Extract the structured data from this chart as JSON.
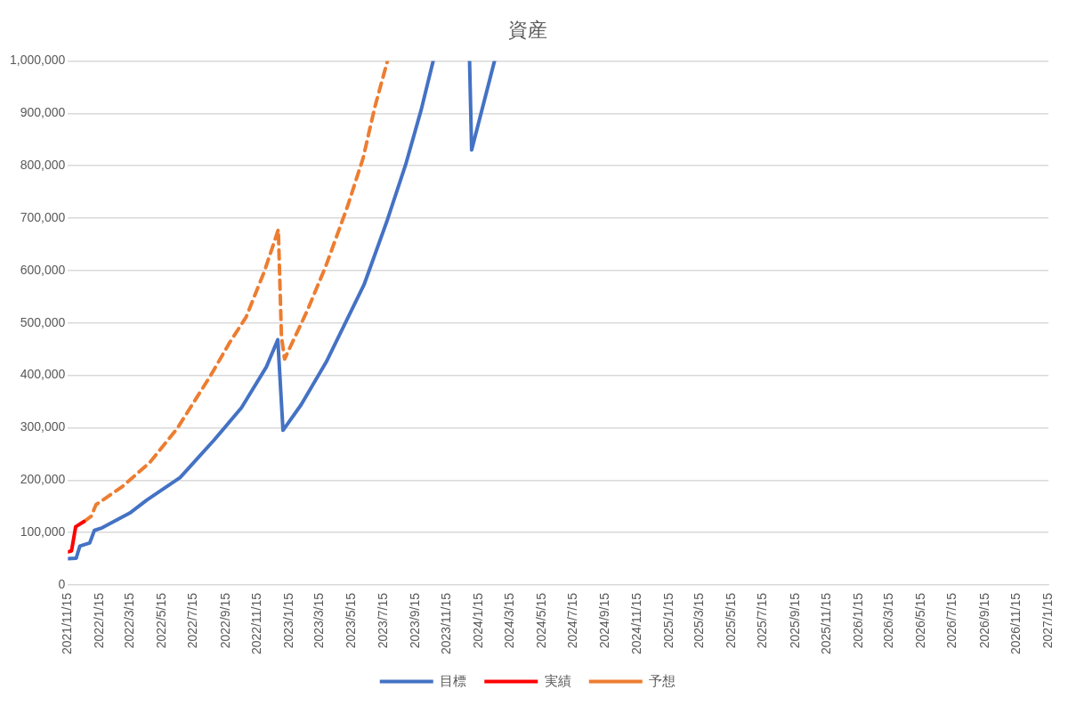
{
  "chart_data": {
    "type": "line",
    "title": "資産",
    "xlim": [
      "2021-11-15",
      "2027-01-15"
    ],
    "xticks": [
      {
        "value": "2021-11-15",
        "label": "2021/11/15"
      },
      {
        "value": "2022-01-15",
        "label": "2022/1/15"
      },
      {
        "value": "2022-03-15",
        "label": "2022/3/15"
      },
      {
        "value": "2022-05-15",
        "label": "2022/5/15"
      },
      {
        "value": "2022-07-15",
        "label": "2022/7/15"
      },
      {
        "value": "2022-09-15",
        "label": "2022/9/15"
      },
      {
        "value": "2022-11-15",
        "label": "2022/11/15"
      },
      {
        "value": "2023-01-15",
        "label": "2023/1/15"
      },
      {
        "value": "2023-03-15",
        "label": "2023/3/15"
      },
      {
        "value": "2023-05-15",
        "label": "2023/5/15"
      },
      {
        "value": "2023-07-15",
        "label": "2023/7/15"
      },
      {
        "value": "2023-09-15",
        "label": "2023/9/15"
      },
      {
        "value": "2023-11-15",
        "label": "2023/11/15"
      },
      {
        "value": "2024-01-15",
        "label": "2024/1/15"
      },
      {
        "value": "2024-03-15",
        "label": "2024/3/15"
      },
      {
        "value": "2024-05-15",
        "label": "2024/5/15"
      },
      {
        "value": "2024-07-15",
        "label": "2024/7/15"
      },
      {
        "value": "2024-09-15",
        "label": "2024/9/15"
      },
      {
        "value": "2024-11-15",
        "label": "2024/11/15"
      },
      {
        "value": "2025-01-15",
        "label": "2025/1/15"
      },
      {
        "value": "2025-03-15",
        "label": "2025/3/15"
      },
      {
        "value": "2025-05-15",
        "label": "2025/5/15"
      },
      {
        "value": "2025-07-15",
        "label": "2025/7/15"
      },
      {
        "value": "2025-09-15",
        "label": "2025/9/15"
      },
      {
        "value": "2025-11-15",
        "label": "2025/11/15"
      },
      {
        "value": "2026-01-15",
        "label": "2026/1/15"
      },
      {
        "value": "2026-03-15",
        "label": "2026/3/15"
      },
      {
        "value": "2026-05-15",
        "label": "2026/5/15"
      },
      {
        "value": "2026-07-15",
        "label": "2026/7/15"
      },
      {
        "value": "2026-09-15",
        "label": "2026/9/15"
      },
      {
        "value": "2026-11-15",
        "label": "2026/11/15"
      },
      {
        "value": "2027-01-15",
        "label": "2027/1/15"
      }
    ],
    "ylim": [
      0,
      1000000
    ],
    "yticks": [
      {
        "value": 0,
        "label": "0"
      },
      {
        "value": 100000,
        "label": "100,000"
      },
      {
        "value": 200000,
        "label": "200,000"
      },
      {
        "value": 300000,
        "label": "300,000"
      },
      {
        "value": 400000,
        "label": "400,000"
      },
      {
        "value": 500000,
        "label": "500,000"
      },
      {
        "value": 600000,
        "label": "600,000"
      },
      {
        "value": 700000,
        "label": "700,000"
      },
      {
        "value": 800000,
        "label": "800,000"
      },
      {
        "value": 900000,
        "label": "900,000"
      },
      {
        "value": 1000000,
        "label": "1,000,000"
      }
    ],
    "grid": "y",
    "legend": "bottom",
    "series": [
      {
        "name": "目標",
        "color": "#4472c4",
        "line_style": "solid",
        "x": [
          "2021-11-15",
          "2021-12-01",
          "2021-12-08",
          "2021-12-27",
          "2022-01-05",
          "2022-01-20",
          "2022-03-14",
          "2022-04-16",
          "2022-06-19",
          "2022-08-23",
          "2022-10-15",
          "2022-12-02",
          "2022-12-24",
          "2023-01-03",
          "2023-02-07",
          "2023-03-27",
          "2023-06-08",
          "2023-07-23",
          "2023-08-27",
          "2023-09-26",
          "2023-10-19",
          "2023-11-20",
          "2023-12-28",
          "2024-01-01",
          "2024-02-14"
        ],
        "values": [
          50000,
          51000,
          74000,
          80000,
          104000,
          109000,
          137000,
          162000,
          205000,
          276000,
          338000,
          416000,
          468000,
          295000,
          344000,
          425000,
          573000,
          697000,
          802000,
          907000,
          1000000,
          null,
          1000000,
          830000,
          1000000
        ]
      },
      {
        "name": "実績",
        "color": "#ff0000",
        "line_style": "solid",
        "x": [
          "2021-11-15",
          "2021-11-22",
          "2021-11-30",
          "2021-12-16"
        ],
        "values": [
          63000,
          65000,
          111000,
          121000
        ]
      },
      {
        "name": "予想",
        "color": "#ed7d31",
        "line_style": "dashed",
        "x": [
          "2021-12-16",
          "2021-12-30",
          "2022-01-08",
          "2022-02-27",
          "2022-04-21",
          "2022-06-13",
          "2022-08-17",
          "2022-09-22",
          "2022-10-24",
          "2022-11-28",
          "2022-12-25",
          "2022-12-31",
          "2023-01-06",
          "2023-02-19",
          "2023-03-27",
          "2023-05-07",
          "2023-06-06",
          "2023-06-29",
          "2023-07-23"
        ],
        "values": [
          121000,
          131000,
          153000,
          187000,
          233000,
          298000,
          400000,
          462000,
          511000,
          598000,
          678000,
          474000,
          431000,
          524000,
          610000,
          722000,
          814000,
          913000,
          1000000
        ]
      }
    ]
  }
}
